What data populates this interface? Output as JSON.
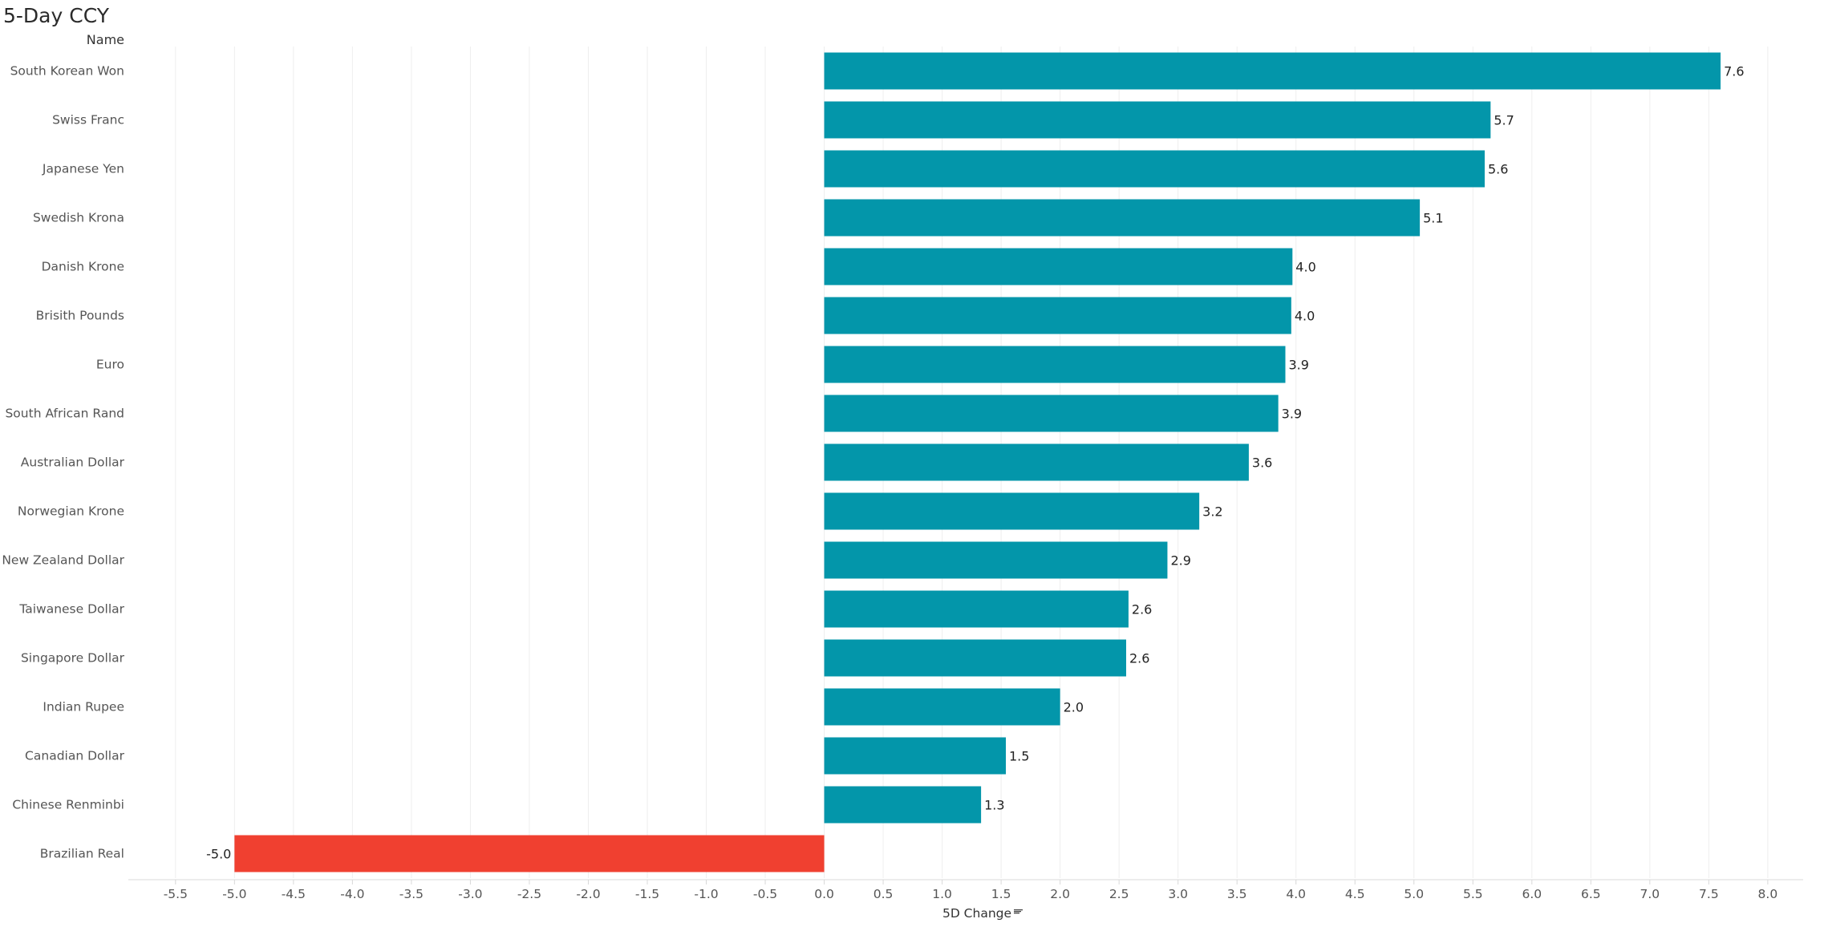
{
  "chart_data": {
    "type": "bar",
    "orientation": "horizontal",
    "title": "5-Day CCY",
    "category_header": "Name",
    "xlabel": "5D Change",
    "ylabel": "",
    "categories": [
      "South Korean Won",
      "Swiss Franc",
      "Japanese Yen",
      "Swedish Krona",
      "Danish Krone",
      "Brisith Pounds",
      "Euro",
      "South African Rand",
      "Australian Dollar",
      "Norwegian Krone",
      "New Zealand Dollar",
      "Taiwanese Dollar",
      "Singapore Dollar",
      "Indian Rupee",
      "Canadian Dollar",
      "Chinese Renminbi",
      "Brazilian Real"
    ],
    "values": [
      7.6,
      5.65,
      5.6,
      5.05,
      3.97,
      3.96,
      3.91,
      3.85,
      3.6,
      3.18,
      2.91,
      2.58,
      2.56,
      2.0,
      1.54,
      1.33,
      -5.0
    ],
    "data_labels": [
      "7.6",
      "5.7",
      "5.6",
      "5.1",
      "4.0",
      "4.0",
      "3.9",
      "3.9",
      "3.6",
      "3.2",
      "2.9",
      "2.6",
      "2.6",
      "2.0",
      "1.5",
      "1.3",
      "-5.0"
    ],
    "xlim": [
      -5.9,
      8.3
    ],
    "xticks": [
      -5.5,
      -5.0,
      -4.5,
      -4.0,
      -3.5,
      -3.0,
      -2.5,
      -2.0,
      -1.5,
      -1.0,
      -0.5,
      0.0,
      0.5,
      1.0,
      1.5,
      2.0,
      2.5,
      3.0,
      3.5,
      4.0,
      4.5,
      5.0,
      5.5,
      6.0,
      6.5,
      7.0,
      7.5,
      8.0
    ],
    "xtick_labels": [
      "-5.5",
      "-5.0",
      "-4.5",
      "-4.0",
      "-3.5",
      "-3.0",
      "-2.5",
      "-2.0",
      "-1.5",
      "-1.0",
      "-0.5",
      "0.0",
      "0.5",
      "1.0",
      "1.5",
      "2.0",
      "2.5",
      "3.0",
      "3.5",
      "4.0",
      "4.5",
      "5.0",
      "5.5",
      "6.0",
      "6.5",
      "7.0",
      "7.5",
      "8.0"
    ],
    "grid": true,
    "sort_indicator_icon": "sort-descending-icon",
    "colors": {
      "positive": "#0396aa",
      "negative": "#f04030",
      "gridline": "#eeeeee",
      "axis": "#d8d8d8"
    }
  }
}
